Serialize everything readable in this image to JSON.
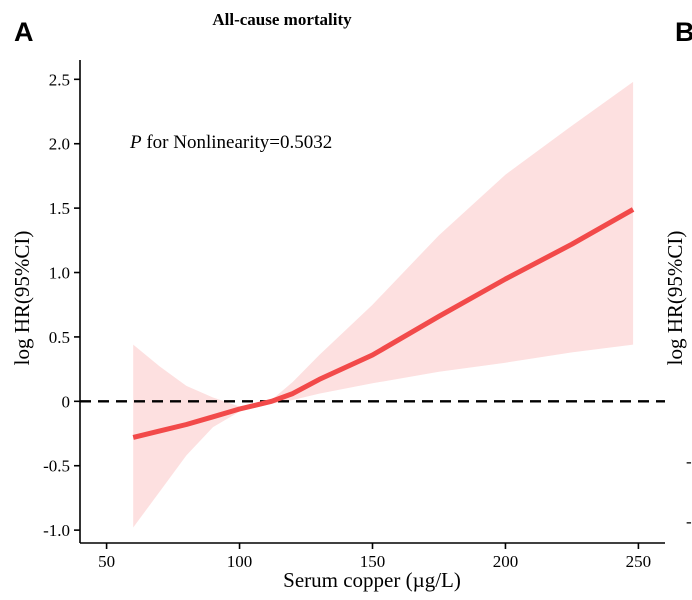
{
  "panel_labels": {
    "left": "A",
    "right": "B"
  },
  "chart_data": {
    "type": "line",
    "title": "All-cause mortality",
    "xlabel": "Serum copper (µg/L)",
    "ylabel": "log HR(95%CI)",
    "xlim": [
      40,
      260
    ],
    "ylim": [
      -1.1,
      2.65
    ],
    "x_ticks": [
      50,
      100,
      150,
      200,
      250
    ],
    "x_tick_labels": [
      "50",
      "100",
      "150",
      "200",
      "250"
    ],
    "y_ticks": [
      -1.0,
      -0.5,
      0,
      0.5,
      1.0,
      1.5,
      2.0,
      2.5
    ],
    "y_tick_labels": [
      "-1.0",
      "-0.5",
      "0",
      "0.5",
      "1.0",
      "1.5",
      "2.0",
      "2.5"
    ],
    "reference_line": {
      "y": 0,
      "style": "dashed"
    },
    "annotation": {
      "italic": "P",
      "text": " for Nonlinearity=0.5032"
    },
    "colors": {
      "line": "#f24a4a",
      "band": "#fde0e0",
      "axis": "#000000"
    },
    "series": [
      {
        "name": "log HR",
        "x": [
          60,
          70,
          80,
          90,
          100,
          112,
          120,
          130,
          150,
          175,
          200,
          225,
          248
        ],
        "y": [
          -0.28,
          -0.23,
          -0.18,
          -0.12,
          -0.06,
          0.0,
          0.06,
          0.17,
          0.36,
          0.66,
          0.95,
          1.22,
          1.49
        ],
        "lower": [
          -0.98,
          -0.7,
          -0.42,
          -0.2,
          -0.08,
          -0.02,
          0.01,
          0.06,
          0.14,
          0.23,
          0.3,
          0.38,
          0.44
        ],
        "upper": [
          0.44,
          0.27,
          0.12,
          0.03,
          -0.04,
          0.01,
          0.15,
          0.36,
          0.75,
          1.29,
          1.76,
          2.14,
          2.48
        ]
      }
    ],
    "right_panel": {
      "ylabel": "log HR(95%CI)",
      "y_tick_labels": [
        "-",
        "-"
      ]
    }
  }
}
